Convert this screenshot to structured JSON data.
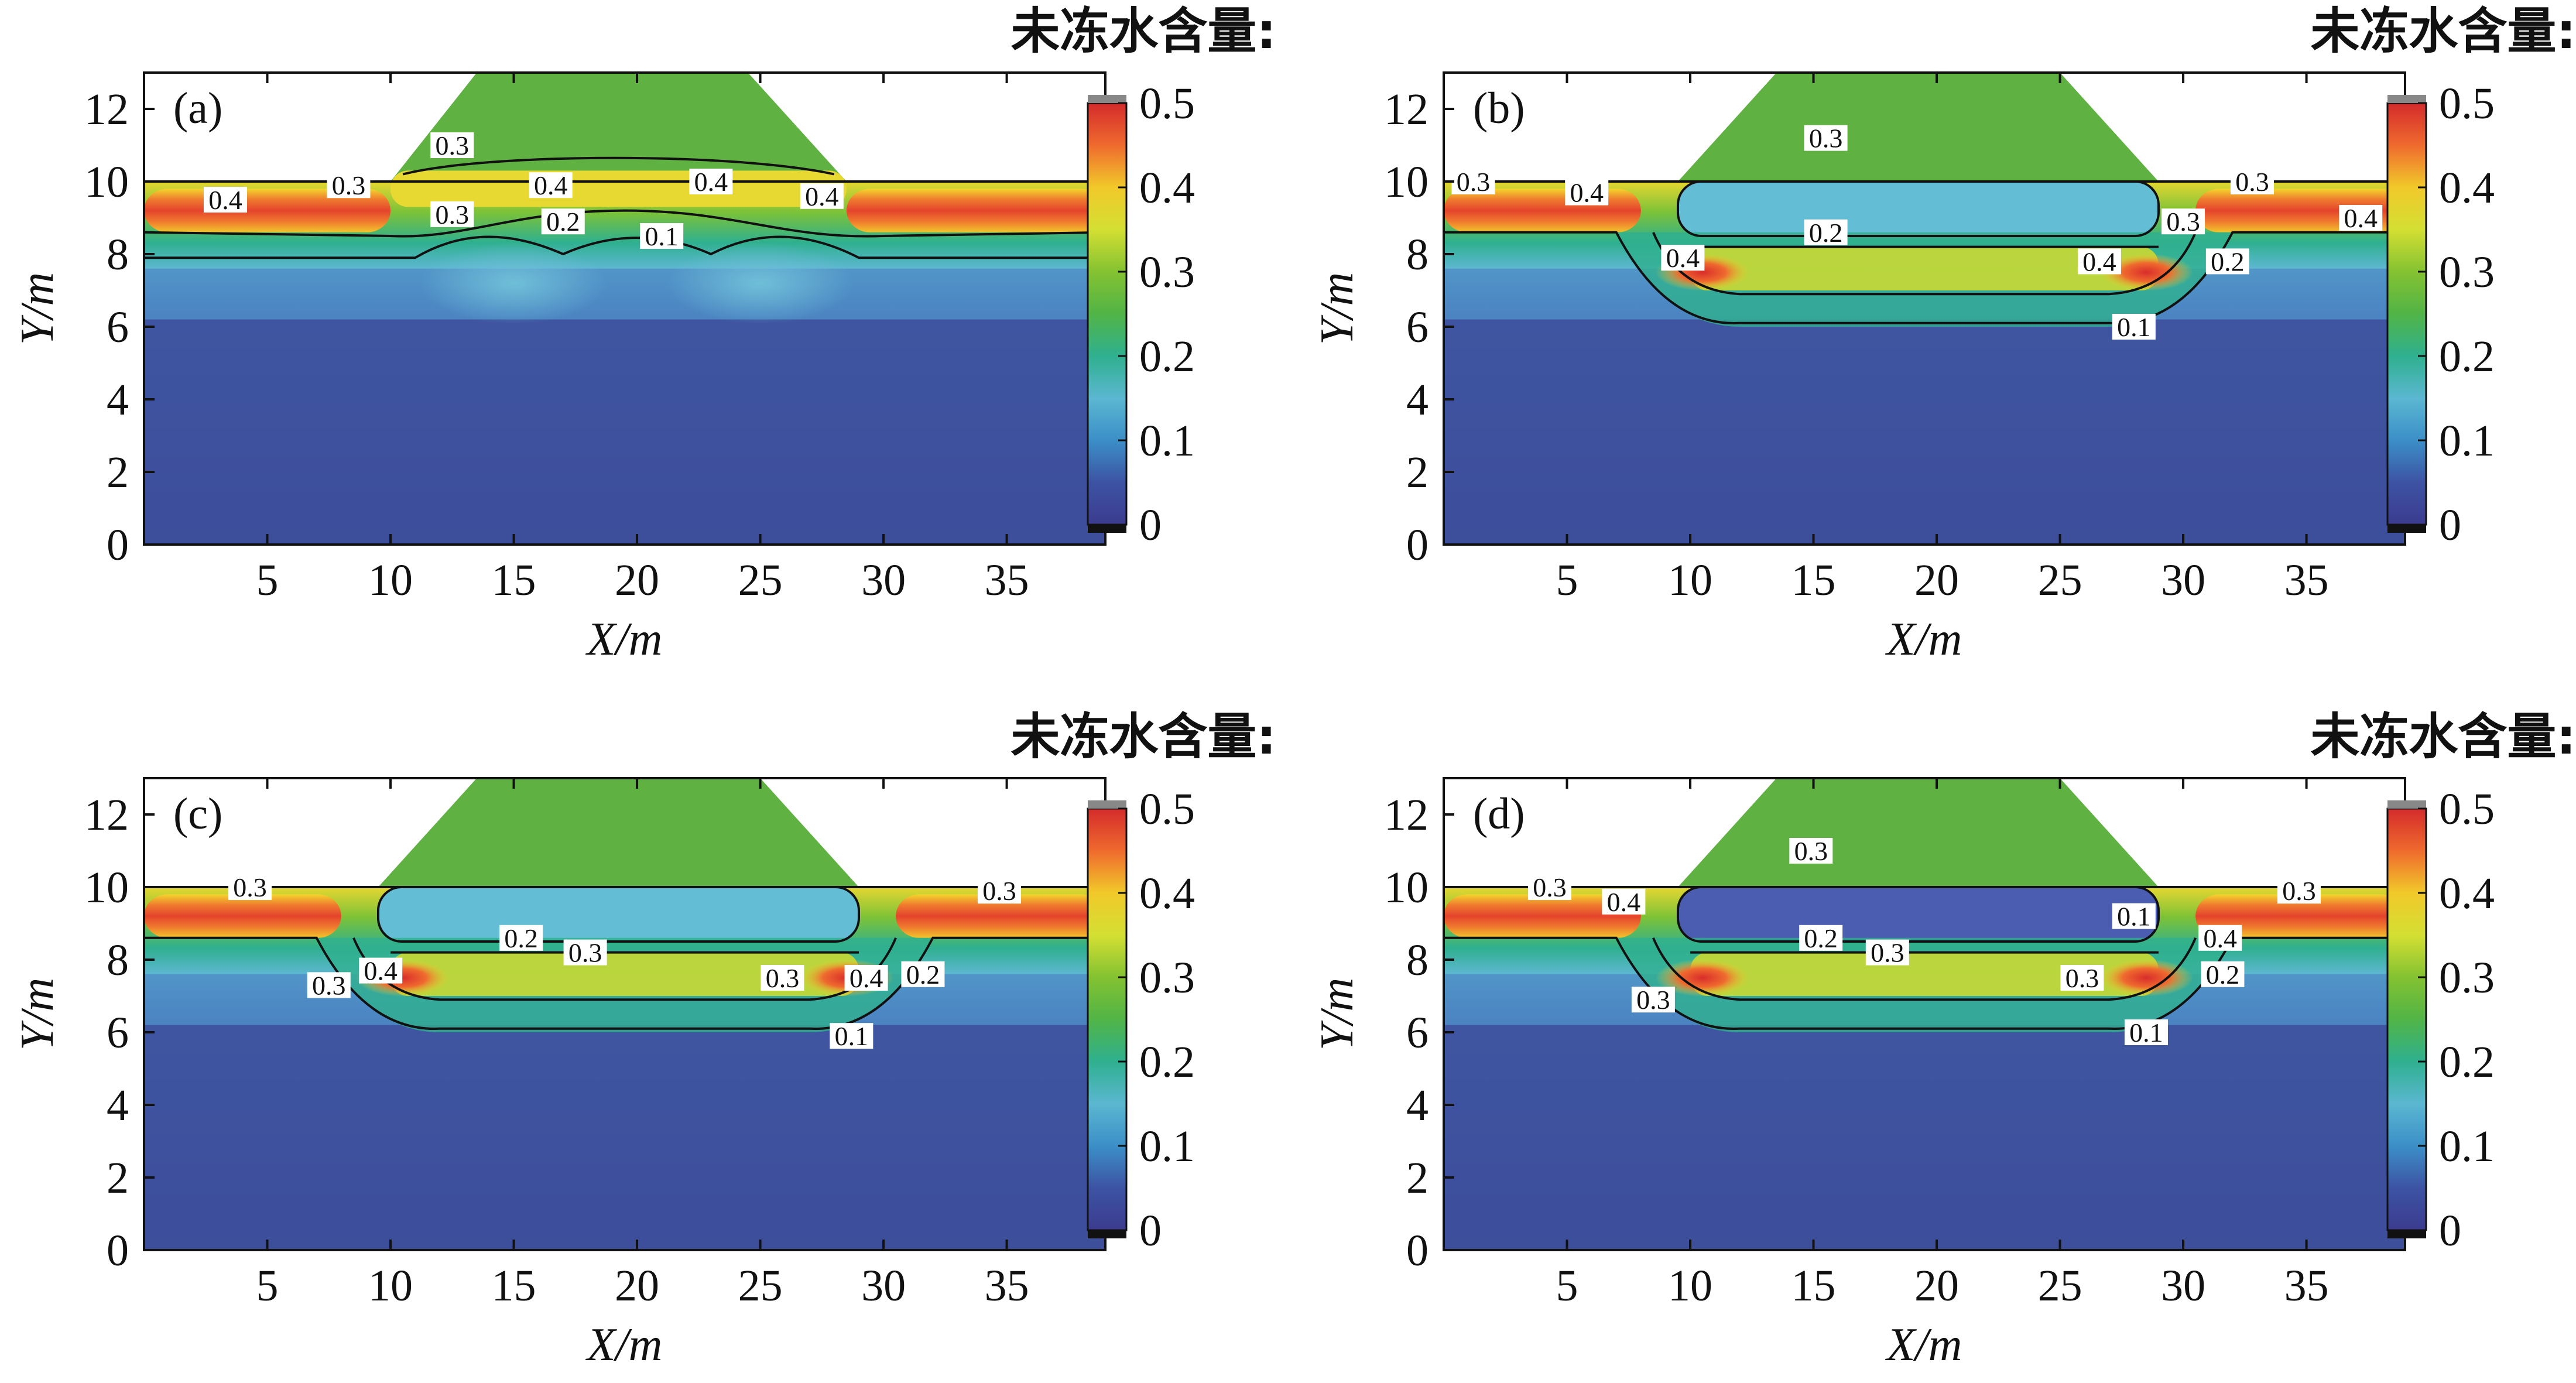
{
  "chart_data": [
    {
      "type": "heatmap",
      "panel_label": "(a)",
      "colorbar_title": "未冻水含量:",
      "xlabel": "X/m",
      "ylabel": "Y/m",
      "xlim": [
        0,
        39
      ],
      "ylim": [
        0,
        13
      ],
      "x_ticks": [
        "5",
        "10",
        "15",
        "20",
        "25",
        "30",
        "35"
      ],
      "y_ticks": [
        "2",
        "4",
        "6",
        "8",
        "10",
        "12"
      ],
      "origin_label": "0",
      "colorbar_range": [
        0,
        0.5
      ],
      "colorbar_ticks": [
        "0",
        "0.1",
        "0.2",
        "0.3",
        "0.4",
        "0.5"
      ],
      "contour_labels": [
        {
          "text": "0.4",
          "x": 3.3,
          "y": 9.5
        },
        {
          "text": "0.3",
          "x": 8.3,
          "y": 9.9
        },
        {
          "text": "0.3",
          "x": 12.5,
          "y": 11.0
        },
        {
          "text": "0.3",
          "x": 12.5,
          "y": 9.1
        },
        {
          "text": "0.4",
          "x": 16.5,
          "y": 9.9
        },
        {
          "text": "0.2",
          "x": 17.0,
          "y": 8.9
        },
        {
          "text": "0.4",
          "x": 23.0,
          "y": 10.0
        },
        {
          "text": "0.1",
          "x": 21.0,
          "y": 8.5
        },
        {
          "text": "0.4",
          "x": 27.5,
          "y": 9.6
        }
      ]
    },
    {
      "type": "heatmap",
      "panel_label": "(b)",
      "colorbar_title": "未冻水含量:",
      "xlabel": "X/m",
      "ylabel": "Y/m",
      "xlim": [
        0,
        39
      ],
      "ylim": [
        0,
        13
      ],
      "x_ticks": [
        "5",
        "10",
        "15",
        "20",
        "25",
        "30",
        "35"
      ],
      "y_ticks": [
        "2",
        "4",
        "6",
        "8",
        "10",
        "12"
      ],
      "origin_label": "0",
      "colorbar_range": [
        0,
        0.5
      ],
      "colorbar_ticks": [
        "0",
        "0.1",
        "0.2",
        "0.3",
        "0.4",
        "0.5"
      ],
      "contour_labels": [
        {
          "text": "0.3",
          "x": 1.2,
          "y": 10.0
        },
        {
          "text": "0.4",
          "x": 5.8,
          "y": 9.7
        },
        {
          "text": "0.3",
          "x": 15.5,
          "y": 11.2
        },
        {
          "text": "0.2",
          "x": 15.5,
          "y": 8.6
        },
        {
          "text": "0.4",
          "x": 9.7,
          "y": 7.9
        },
        {
          "text": "0.4",
          "x": 26.6,
          "y": 7.8
        },
        {
          "text": "0.3",
          "x": 30.0,
          "y": 8.9
        },
        {
          "text": "0.3",
          "x": 32.8,
          "y": 10.0
        },
        {
          "text": "0.4",
          "x": 37.2,
          "y": 9.0
        },
        {
          "text": "0.2",
          "x": 31.8,
          "y": 7.8
        },
        {
          "text": "0.1",
          "x": 28.0,
          "y": 6.0
        }
      ]
    },
    {
      "type": "heatmap",
      "panel_label": "(c)",
      "colorbar_title": "未冻水含量:",
      "xlabel": "X/m",
      "ylabel": "Y/m",
      "xlim": [
        0,
        39
      ],
      "ylim": [
        0,
        13
      ],
      "x_ticks": [
        "5",
        "10",
        "15",
        "20",
        "25",
        "30",
        "35"
      ],
      "y_ticks": [
        "2",
        "4",
        "6",
        "8",
        "10",
        "12"
      ],
      "origin_label": "0",
      "colorbar_range": [
        0,
        0.5
      ],
      "colorbar_ticks": [
        "0",
        "0.1",
        "0.2",
        "0.3",
        "0.4",
        "0.5"
      ],
      "contour_labels": [
        {
          "text": "0.3",
          "x": 4.3,
          "y": 10.0
        },
        {
          "text": "0.4",
          "x": 9.6,
          "y": 7.7
        },
        {
          "text": "0.3",
          "x": 7.5,
          "y": 7.3
        },
        {
          "text": "0.2",
          "x": 15.3,
          "y": 8.6
        },
        {
          "text": "0.3",
          "x": 17.9,
          "y": 8.2
        },
        {
          "text": "0.3",
          "x": 25.9,
          "y": 7.5
        },
        {
          "text": "0.4",
          "x": 29.3,
          "y": 7.5
        },
        {
          "text": "0.2",
          "x": 31.6,
          "y": 7.6
        },
        {
          "text": "0.1",
          "x": 28.7,
          "y": 5.9
        },
        {
          "text": "0.3",
          "x": 34.7,
          "y": 9.9
        }
      ]
    },
    {
      "type": "heatmap",
      "panel_label": "(d)",
      "colorbar_title": "未冻水含量:",
      "xlabel": "X/m",
      "ylabel": "Y/m",
      "xlim": [
        0,
        39
      ],
      "ylim": [
        0,
        13
      ],
      "x_ticks": [
        "5",
        "10",
        "15",
        "20",
        "25",
        "30",
        "35"
      ],
      "y_ticks": [
        "2",
        "4",
        "6",
        "8",
        "10",
        "12"
      ],
      "origin_label": "0",
      "colorbar_range": [
        0,
        0.5
      ],
      "colorbar_ticks": [
        "0",
        "0.1",
        "0.2",
        "0.3",
        "0.4",
        "0.5"
      ],
      "contour_labels": [
        {
          "text": "0.3",
          "x": 4.3,
          "y": 10.0
        },
        {
          "text": "0.4",
          "x": 7.3,
          "y": 9.6
        },
        {
          "text": "0.3",
          "x": 14.9,
          "y": 11.0
        },
        {
          "text": "0.1",
          "x": 28.0,
          "y": 9.2
        },
        {
          "text": "0.2",
          "x": 15.3,
          "y": 8.6
        },
        {
          "text": "0.3",
          "x": 18.0,
          "y": 8.2
        },
        {
          "text": "0.3",
          "x": 8.5,
          "y": 6.9
        },
        {
          "text": "0.3",
          "x": 25.9,
          "y": 7.5
        },
        {
          "text": "0.4",
          "x": 31.5,
          "y": 8.6
        },
        {
          "text": "0.2",
          "x": 31.6,
          "y": 7.6
        },
        {
          "text": "0.1",
          "x": 28.5,
          "y": 6.0
        },
        {
          "text": "0.3",
          "x": 34.7,
          "y": 9.9
        }
      ]
    }
  ]
}
